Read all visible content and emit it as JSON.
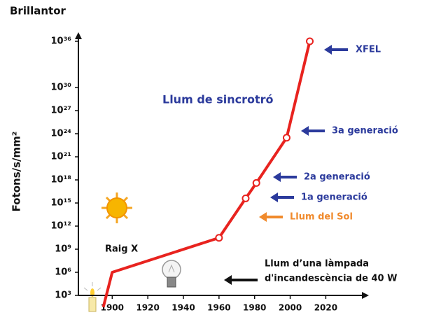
{
  "chart_data": {
    "type": "line",
    "title": "Brillantor",
    "y_label": "Fotons/s/mm²",
    "log_y": true,
    "x": [
      1895,
      1900,
      1960,
      1975,
      1981,
      1998,
      2011
    ],
    "series": [
      {
        "name": "Llum de sincrotró",
        "color": "#e8231f",
        "values": [
          30,
          1000000,
          30000000000,
          4000000000000000.0,
          4e+17,
          3e+23,
          1e+36
        ]
      }
    ],
    "markers": [
      false,
      false,
      true,
      true,
      true,
      true,
      true
    ],
    "xlim": [
      1881,
      2034
    ],
    "xticks": [
      1900,
      1920,
      1940,
      1960,
      1980,
      2000,
      2020
    ],
    "ylim": [
      10,
      1e+37
    ],
    "yticks": [
      {
        "value": 1000,
        "label": "10³"
      },
      {
        "value": 1000000,
        "label": "10⁶"
      },
      {
        "value": 1000000000,
        "label": "10⁹"
      },
      {
        "value": 1000000000000.0,
        "label": "10¹²"
      },
      {
        "value": 1000000000000000.0,
        "label": "10¹⁵"
      },
      {
        "value": 1e+18,
        "label": "10¹⁸"
      },
      {
        "value": 1e+21,
        "label": "10²¹"
      },
      {
        "value": 1e+24,
        "label": "10²⁴"
      },
      {
        "value": 1e+27,
        "label": "10²⁷"
      },
      {
        "value": 1e+30,
        "label": "10³⁰"
      },
      {
        "value": 1e+36,
        "label": "10³⁶"
      }
    ],
    "annotations": [
      {
        "text": "XFEL",
        "color": "#2b3a9c"
      },
      {
        "text": "3a generació",
        "color": "#2b3a9c"
      },
      {
        "text": "2a generació",
        "color": "#2b3a9c"
      },
      {
        "text": "1a generació",
        "color": "#2b3a9c"
      },
      {
        "text": "Llum del Sol",
        "color": "#f08a2c"
      },
      {
        "text": "Llum d’una làmpada",
        "color": "#111111"
      },
      {
        "text": "d'incandescència de 40 W",
        "color": "#111111"
      },
      {
        "text": "Raig X",
        "color": "#111111"
      },
      {
        "text": "Llum de sincrotró",
        "color": "#2b3a9c"
      }
    ]
  }
}
